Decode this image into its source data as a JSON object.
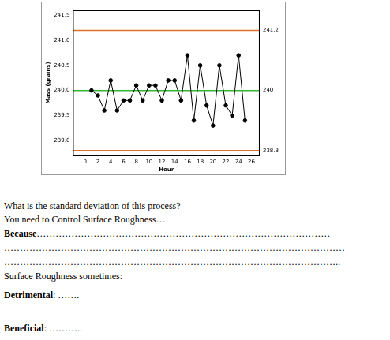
{
  "chart_data": {
    "type": "line",
    "x_label": "Hour",
    "y_label": "Mass (grams)",
    "x": [
      1,
      2,
      3,
      4,
      5,
      6,
      7,
      8,
      9,
      10,
      11,
      12,
      13,
      14,
      15,
      16,
      17,
      18,
      19,
      20,
      21,
      22,
      23,
      24,
      25
    ],
    "values": [
      240.0,
      239.9,
      239.6,
      240.2,
      239.6,
      239.8,
      239.8,
      240.1,
      239.8,
      240.1,
      240.1,
      239.8,
      240.2,
      240.2,
      239.8,
      240.7,
      239.4,
      240.5,
      239.7,
      239.3,
      240.5,
      239.7,
      239.5,
      240.7,
      239.4
    ],
    "color": "#000000",
    "marker": "circle",
    "grid": false,
    "xlim": [
      -1.9,
      27.3
    ],
    "xticks": [
      0,
      2,
      4,
      6,
      8,
      10,
      12,
      14,
      16,
      18,
      20,
      22,
      24,
      26
    ],
    "ylim": [
      238.7,
      241.6
    ],
    "yticks": [
      {
        "value": 239,
        "label": "239.0"
      },
      {
        "value": 239.5,
        "label": "239.5"
      },
      {
        "value": 240,
        "label": "240.0"
      },
      {
        "value": 240.5,
        "label": "240.5"
      },
      {
        "value": 241,
        "label": "241.0"
      },
      {
        "value": 241.5,
        "label": "241.5"
      }
    ],
    "y2lim": [
      238.7,
      241.6
    ],
    "y2ticks": [
      238.8,
      240,
      241.2
    ],
    "lines": [
      {
        "value": 241.2,
        "color": "#e07028"
      },
      {
        "value": 240,
        "color": "#2fb82f"
      },
      {
        "value": 238.8,
        "color": "#e07028"
      }
    ]
  },
  "document": {
    "lines": [
      {
        "top": 254,
        "text": "What is the standard deviation of this process?"
      },
      {
        "top": 271,
        "text": "You need to Control Surface Roughness…"
      },
      {
        "top": 289,
        "bold": "Because",
        "text": "…………………………………………………………………………………"
      },
      {
        "top": 307,
        "text": "………………………………………………………………………………………………"
      },
      {
        "top": 325,
        "text": "…………………………………………………………………………………………….."
      },
      {
        "top": 343,
        "text": "Surface Roughness sometimes:"
      },
      {
        "top": 367,
        "bold": "Detrimental",
        "text": ": ……."
      },
      {
        "top": 409,
        "bold": "Beneficial",
        "text": ": ……….."
      }
    ]
  }
}
